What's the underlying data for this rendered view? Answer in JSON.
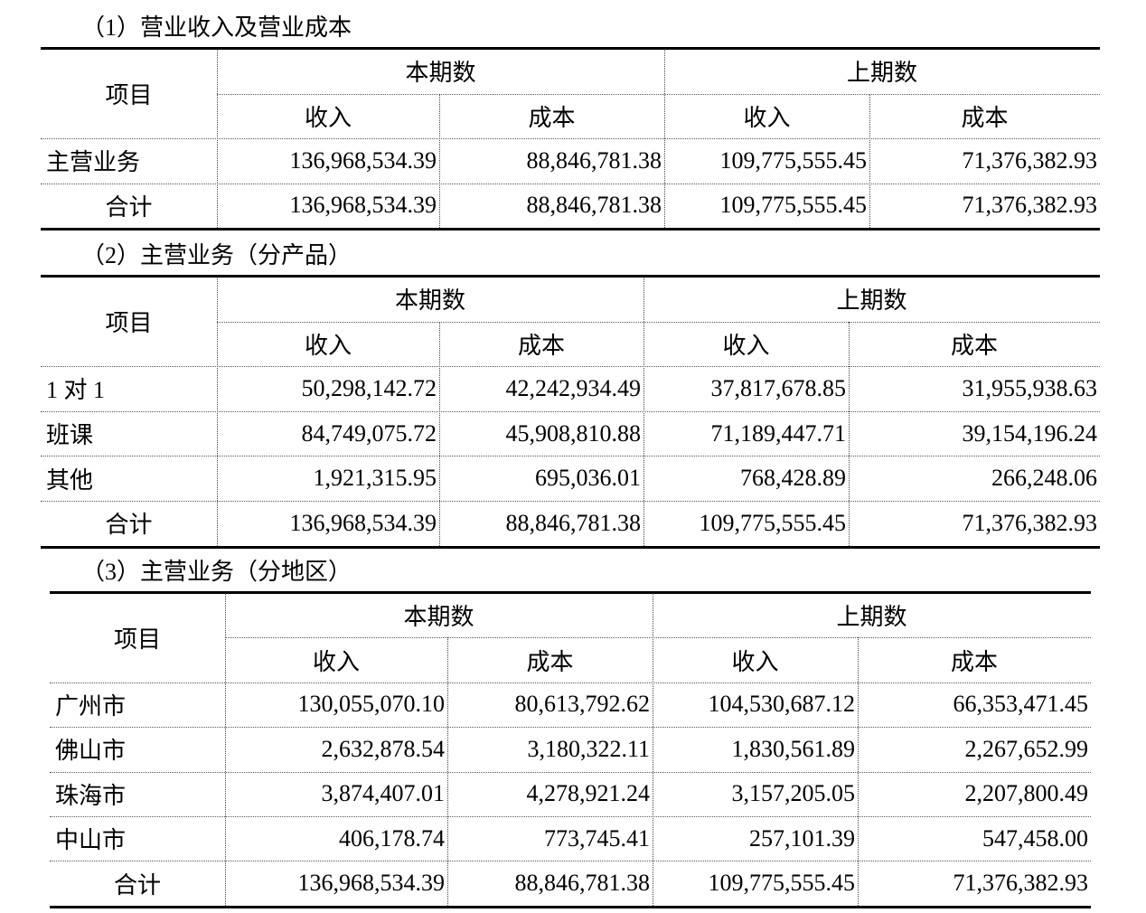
{
  "sections": [
    {
      "title": "（1）营业收入及营业成本",
      "header": {
        "item": "项目",
        "groups": [
          "本期数",
          "上期数"
        ],
        "columns": [
          "收入",
          "成本",
          "收入",
          "成本"
        ]
      },
      "rows": [
        {
          "label": "主营业务",
          "values": [
            "136,968,534.39",
            "88,846,781.38",
            "109,775,555.45",
            "71,376,382.93"
          ]
        },
        {
          "label": "合计",
          "values": [
            "136,968,534.39",
            "88,846,781.38",
            "109,775,555.45",
            "71,376,382.93"
          ]
        }
      ]
    },
    {
      "title": "（2）主营业务（分产品）",
      "header": {
        "item": "项目",
        "groups": [
          "本期数",
          "上期数"
        ],
        "columns": [
          "收入",
          "成本",
          "收入",
          "成本"
        ]
      },
      "rows": [
        {
          "label": "1 对 1",
          "values": [
            "50,298,142.72",
            "42,242,934.49",
            "37,817,678.85",
            "31,955,938.63"
          ]
        },
        {
          "label": "班课",
          "values": [
            "84,749,075.72",
            "45,908,810.88",
            "71,189,447.71",
            "39,154,196.24"
          ]
        },
        {
          "label": "其他",
          "values": [
            "1,921,315.95",
            "695,036.01",
            "768,428.89",
            "266,248.06"
          ]
        },
        {
          "label": "合计",
          "values": [
            "136,968,534.39",
            "88,846,781.38",
            "109,775,555.45",
            "71,376,382.93"
          ]
        }
      ]
    },
    {
      "title": "（3）主营业务（分地区）",
      "header": {
        "item": "项目",
        "groups": [
          "本期数",
          "上期数"
        ],
        "columns": [
          "收入",
          "成本",
          "收入",
          "成本"
        ]
      },
      "rows": [
        {
          "label": "广州市",
          "values": [
            "130,055,070.10",
            "80,613,792.62",
            "104,530,687.12",
            "66,353,471.45"
          ]
        },
        {
          "label": "佛山市",
          "values": [
            "2,632,878.54",
            "3,180,322.11",
            "1,830,561.89",
            "2,267,652.99"
          ]
        },
        {
          "label": "珠海市",
          "values": [
            "3,874,407.01",
            "4,278,921.24",
            "3,157,205.05",
            "2,207,800.49"
          ]
        },
        {
          "label": "中山市",
          "values": [
            "406,178.74",
            "773,745.41",
            "257,101.39",
            "547,458.00"
          ]
        },
        {
          "label": "合计",
          "values": [
            "136,968,534.39",
            "88,846,781.38",
            "109,775,555.45",
            "71,376,382.93"
          ]
        }
      ]
    }
  ]
}
